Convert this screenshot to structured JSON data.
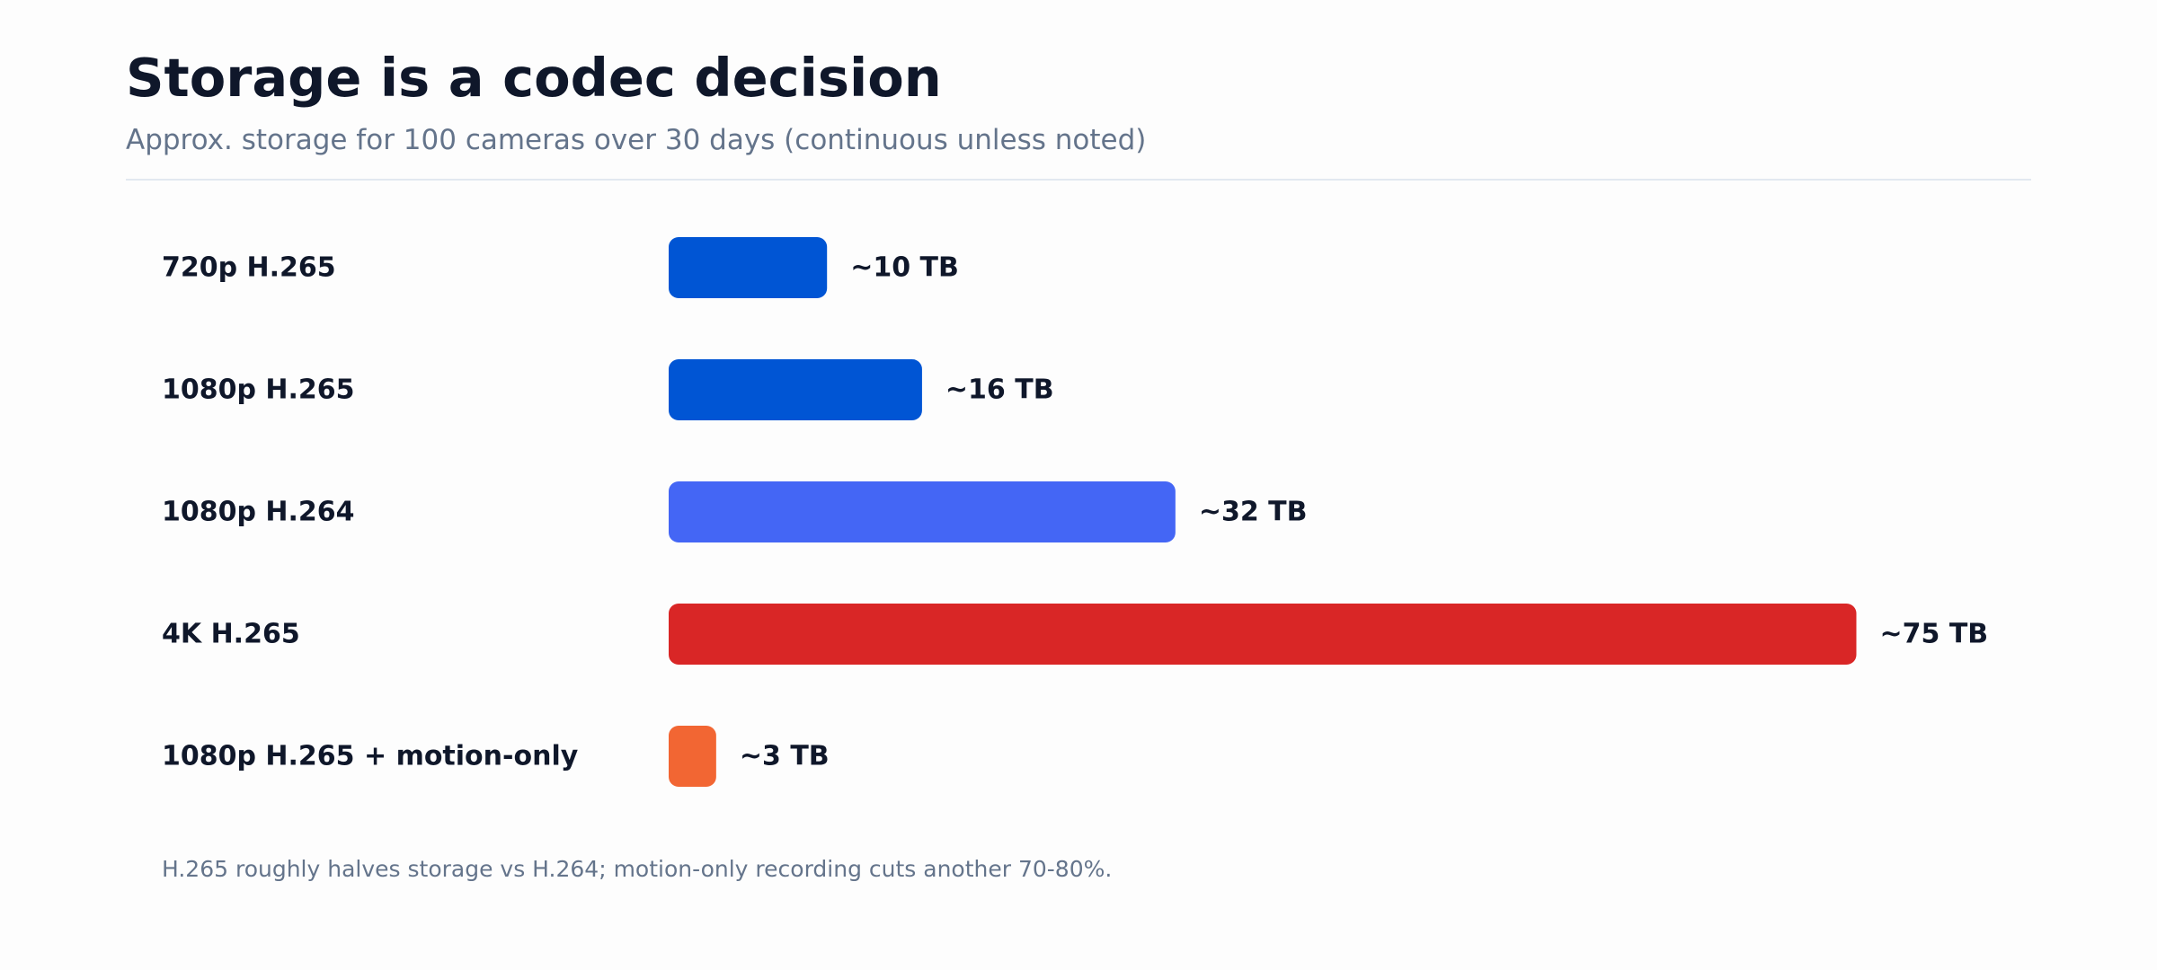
{
  "chart_data": {
    "type": "bar",
    "orientation": "horizontal",
    "title": "Storage is a codec decision",
    "subtitle": "Approx. storage for 100 cameras over 30 days (continuous unless noted)",
    "categories": [
      "720p H.265",
      "1080p H.265",
      "1080p H.264",
      "4K H.265",
      "1080p H.265 + motion-only"
    ],
    "values": [
      10,
      16,
      32,
      75,
      3
    ],
    "value_labels": [
      "~10 TB",
      "~16 TB",
      "~32 TB",
      "~75 TB",
      "~3 TB"
    ],
    "unit": "TB",
    "colors": [
      "#0055d4",
      "#0055d4",
      "#4466f5",
      "#d92626",
      "#f26633"
    ],
    "grid": false,
    "xlabel": "",
    "ylabel": "",
    "xlim": [
      0,
      75
    ],
    "annotation": "H.265 roughly halves storage vs H.264; motion-only recording cuts another 70-80%."
  },
  "colors": {
    "title": "#0f172a",
    "subtitle": "#64748b",
    "label": "#0f172a",
    "divider": "#e2e8f0"
  }
}
